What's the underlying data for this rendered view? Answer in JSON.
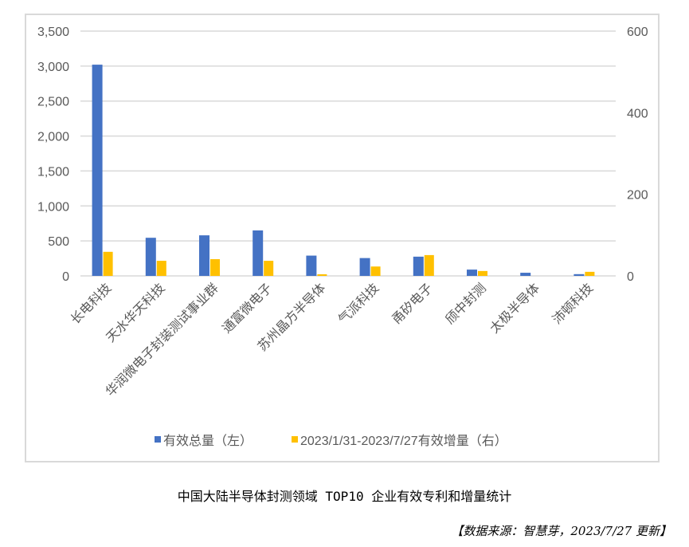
{
  "chart_data": {
    "type": "bar",
    "title": "中国大陆半导体封测领域 TOP10 企业有效专利和增量统计",
    "categories": [
      "长电科技",
      "天水华天科技",
      "华润微电子封装测试事业群",
      "通富微电子",
      "苏州晶方半导体",
      "气派科技",
      "甬矽电子",
      "颀中封测",
      "太极半导体",
      "沛顿科技"
    ],
    "series": [
      {
        "name": "有效总量（左）",
        "axis": "left",
        "color": "#4472c4",
        "values": [
          3020,
          545,
          580,
          650,
          290,
          255,
          275,
          90,
          45,
          25
        ]
      },
      {
        "name": "2023/1/31-2023/7/27有效增量（右）",
        "axis": "right",
        "color": "#ffc000",
        "values": [
          59,
          37,
          41,
          37,
          4,
          23,
          51,
          12,
          0,
          10
        ]
      }
    ],
    "xlabel": "",
    "ylabel": "",
    "ylim": [
      0,
      3500
    ],
    "y_ticks": [
      "0",
      "500",
      "1,000",
      "1,500",
      "2,000",
      "2,500",
      "3,000",
      "3,500"
    ],
    "y2lim": [
      0,
      600
    ],
    "y2_ticks": [
      "0",
      "200",
      "400",
      "600"
    ],
    "grid": true,
    "legend_position": "bottom"
  },
  "legend": {
    "series0": "有效总量（左）",
    "series1": "2023/1/31-2023/7/27有效增量（右）"
  },
  "caption": {
    "title": "中国大陆半导体封测领域 TOP10 企业有效专利和增量统计",
    "source": "【数据来源：智慧芽，2023/7/27 更新】"
  }
}
